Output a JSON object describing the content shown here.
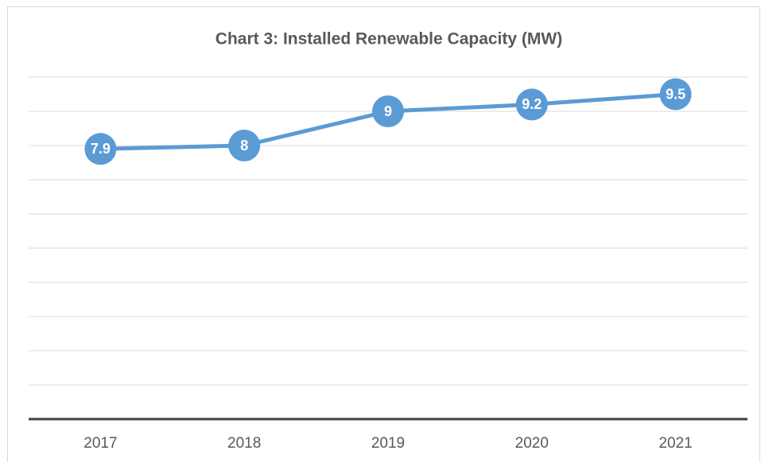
{
  "chart_data": {
    "type": "line",
    "title": "Chart 3: Installed Renewable Capacity (MW)",
    "categories": [
      "2017",
      "2018",
      "2019",
      "2020",
      "2021"
    ],
    "series": [
      {
        "name": "Installed Renewable Capacity",
        "color": "#5b9bd5",
        "values": [
          7.9,
          8,
          9,
          9.2,
          9.5
        ]
      }
    ],
    "ylim": [
      0,
      10
    ],
    "yticks": [
      0,
      1,
      2,
      3,
      4,
      5,
      6,
      7,
      8,
      9,
      10
    ],
    "grid": true
  }
}
